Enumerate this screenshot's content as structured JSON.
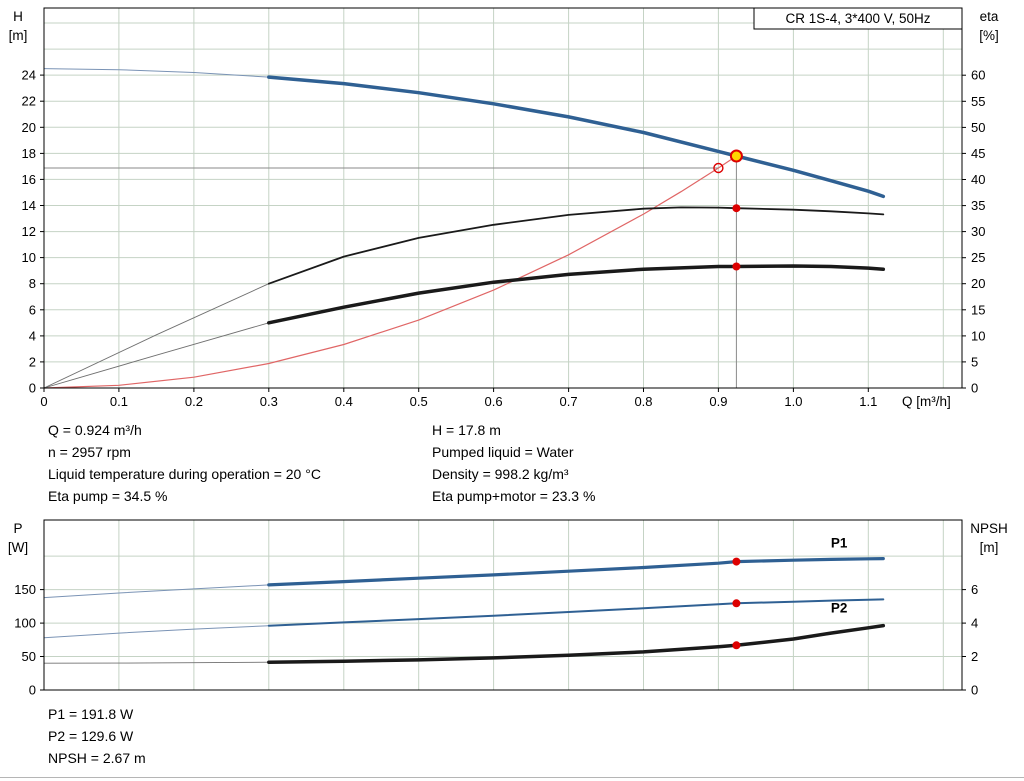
{
  "title_box": "CR 1S-4, 3*400 V, 50Hz",
  "colors": {
    "curve_blue": "#2f6093",
    "curve_blue_light": "#7a93b5",
    "curve_black": "#1a1a1a",
    "lead_gray": "#707070",
    "curve_red": "#e06666",
    "dot_red": "#dd0000",
    "duty_yellow": "#ffd500",
    "grid": "#c5d3c5",
    "axis": "#000000",
    "crosshair": "#8a8a8a",
    "label_blue": "#2f6093"
  },
  "info": {
    "mid_left": [
      "Q = 0.924 m³/h",
      "n = 2957 rpm",
      "Liquid temperature during operation = 20 °C",
      "Eta pump = 34.5 %"
    ],
    "mid_right": [
      "H = 17.8 m",
      "Pumped liquid = Water",
      "Density = 998.2 kg/m³",
      "Eta pump+motor = 23.3 %"
    ],
    "bottom": [
      "P1 = 191.8 W",
      "P2 = 129.6 W",
      "NPSH = 2.67 m"
    ]
  },
  "chart_data": [
    {
      "type": "line",
      "name": "qh-eta-chart",
      "title": "CR 1S-4, 3*400 V, 50Hz",
      "area": {
        "l": 44,
        "t": 8,
        "r": 962,
        "b": 388
      },
      "x": {
        "min": 0,
        "max": 1.225,
        "label": "Q [m³/h]",
        "ticks": [
          [
            0,
            "0"
          ],
          [
            0.1,
            "0.1"
          ],
          [
            0.2,
            "0.2"
          ],
          [
            0.3,
            "0.3"
          ],
          [
            0.4,
            "0.4"
          ],
          [
            0.5,
            "0.5"
          ],
          [
            0.6,
            "0.6"
          ],
          [
            0.7,
            "0.7"
          ],
          [
            0.8,
            "0.8"
          ],
          [
            0.9,
            "0.9"
          ],
          [
            1.0,
            "1.0"
          ],
          [
            1.1,
            "1.1"
          ]
        ],
        "grid": [
          0.1,
          0.2,
          0.3,
          0.4,
          0.5,
          0.6,
          0.7,
          0.8,
          0.9,
          1.0,
          1.1,
          1.2
        ]
      },
      "y_left": {
        "min": 0,
        "max": 29.15,
        "title": [
          "H",
          "[m]"
        ],
        "ticks": [
          [
            0,
            "0"
          ],
          [
            2,
            "2"
          ],
          [
            4,
            "4"
          ],
          [
            6,
            "6"
          ],
          [
            8,
            "8"
          ],
          [
            10,
            "10"
          ],
          [
            12,
            "12"
          ],
          [
            14,
            "14"
          ],
          [
            16,
            "16"
          ],
          [
            18,
            "18"
          ],
          [
            20,
            "20"
          ],
          [
            22,
            "22"
          ],
          [
            24,
            "24"
          ]
        ],
        "grid": [
          2,
          4,
          6,
          8,
          10,
          12,
          14,
          16,
          18,
          20,
          22,
          24,
          26,
          28
        ]
      },
      "y_right": {
        "min": 0,
        "max": 72.9,
        "title": [
          "eta",
          "[%]"
        ],
        "ticks": [
          [
            0,
            "0"
          ],
          [
            5,
            "5"
          ],
          [
            10,
            "10"
          ],
          [
            15,
            "15"
          ],
          [
            20,
            "20"
          ],
          [
            25,
            "25"
          ],
          [
            30,
            "30"
          ],
          [
            35,
            "35"
          ],
          [
            40,
            "40"
          ],
          [
            45,
            "45"
          ],
          [
            50,
            "50"
          ],
          [
            55,
            "55"
          ],
          [
            60,
            "60"
          ]
        ],
        "grid": []
      },
      "series": [
        {
          "name": "crosshair-horizontal",
          "axis": "left",
          "color": "#8a8a8a",
          "width": 1,
          "points": [
            [
              0,
              16.88
            ],
            [
              0.9,
              16.88
            ]
          ]
        },
        {
          "name": "crosshair-vertical",
          "axis": "left",
          "color": "#8a8a8a",
          "width": 1,
          "points": [
            [
              0.924,
              0
            ],
            [
              0.924,
              17.8
            ]
          ]
        },
        {
          "name": "duty-parabola",
          "axis": "left",
          "color": "#e06666",
          "width": 1.2,
          "points": [
            [
              0,
              0
            ],
            [
              0.1,
              0.21
            ],
            [
              0.2,
              0.83
            ],
            [
              0.3,
              1.88
            ],
            [
              0.4,
              3.34
            ],
            [
              0.5,
              5.21
            ],
            [
              0.6,
              7.51
            ],
            [
              0.7,
              10.22
            ],
            [
              0.8,
              13.34
            ],
            [
              0.85,
              15.06
            ],
            [
              0.9,
              16.88
            ],
            [
              0.924,
              17.8
            ]
          ]
        },
        {
          "name": "qh-curve-leadin",
          "axis": "left",
          "color": "#7a93b5",
          "width": 1,
          "points": [
            [
              0,
              24.5
            ],
            [
              0.1,
              24.42
            ],
            [
              0.2,
              24.2
            ],
            [
              0.3,
              23.85
            ]
          ]
        },
        {
          "name": "qh-curve",
          "axis": "left",
          "color": "#2f6093",
          "width": 3.5,
          "points": [
            [
              0.3,
              23.85
            ],
            [
              0.4,
              23.35
            ],
            [
              0.5,
              22.65
            ],
            [
              0.6,
              21.8
            ],
            [
              0.7,
              20.8
            ],
            [
              0.8,
              19.6
            ],
            [
              0.9,
              18.15
            ],
            [
              0.924,
              17.8
            ],
            [
              1.0,
              16.7
            ],
            [
              1.05,
              15.9
            ],
            [
              1.1,
              15.1
            ],
            [
              1.12,
              14.7
            ]
          ]
        },
        {
          "name": "eta-pump-leadin",
          "axis": "right",
          "color": "#707070",
          "width": 0.9,
          "points": [
            [
              0,
              0
            ],
            [
              0.15,
              10.2
            ],
            [
              0.3,
              20
            ]
          ]
        },
        {
          "name": "eta-pump-curve",
          "axis": "right",
          "color": "#1a1a1a",
          "width": 1.8,
          "points": [
            [
              0.3,
              20
            ],
            [
              0.4,
              25.2
            ],
            [
              0.5,
              28.8
            ],
            [
              0.6,
              31.3
            ],
            [
              0.7,
              33.2
            ],
            [
              0.8,
              34.4
            ],
            [
              0.85,
              34.65
            ],
            [
              0.9,
              34.6
            ],
            [
              0.924,
              34.5
            ],
            [
              1.0,
              34.2
            ],
            [
              1.05,
              33.9
            ],
            [
              1.1,
              33.5
            ],
            [
              1.12,
              33.3
            ]
          ]
        },
        {
          "name": "eta-pump-motor-leadin",
          "axis": "right",
          "color": "#707070",
          "width": 0.9,
          "points": [
            [
              0,
              0
            ],
            [
              0.15,
              6.3
            ],
            [
              0.3,
              12.5
            ]
          ]
        },
        {
          "name": "eta-pump-motor-curve",
          "axis": "right",
          "color": "#1a1a1a",
          "width": 3.5,
          "points": [
            [
              0.3,
              12.5
            ],
            [
              0.4,
              15.5
            ],
            [
              0.5,
              18.2
            ],
            [
              0.6,
              20.3
            ],
            [
              0.7,
              21.8
            ],
            [
              0.8,
              22.8
            ],
            [
              0.9,
              23.3
            ],
            [
              0.924,
              23.3
            ],
            [
              1.0,
              23.4
            ],
            [
              1.05,
              23.3
            ],
            [
              1.1,
              23.0
            ],
            [
              1.12,
              22.8
            ]
          ]
        }
      ],
      "markers": [
        {
          "name": "requested-point-marker",
          "type": "open",
          "axis": "left",
          "x": 0.9,
          "y": 16.88
        },
        {
          "name": "duty-point-marker",
          "type": "duty",
          "axis": "left",
          "x": 0.924,
          "y": 17.8
        },
        {
          "name": "eta-pump-dot",
          "type": "dot",
          "axis": "right",
          "x": 0.924,
          "y": 34.5
        },
        {
          "name": "eta-pump-motor-dot",
          "type": "dot",
          "axis": "right",
          "x": 0.924,
          "y": 23.3
        }
      ],
      "labels": []
    },
    {
      "type": "line",
      "name": "power-npsh-chart",
      "title": "",
      "area": {
        "l": 44,
        "t": 520,
        "r": 962,
        "b": 690
      },
      "x": {
        "min": 0,
        "max": 1.225,
        "label": "",
        "ticks": [],
        "grid": [
          0.1,
          0.2,
          0.3,
          0.4,
          0.5,
          0.6,
          0.7,
          0.8,
          0.9,
          1.0,
          1.1,
          1.2
        ]
      },
      "y_left": {
        "min": 0,
        "max": 254,
        "title": [
          "P",
          "[W]"
        ],
        "ticks": [
          [
            0,
            "0"
          ],
          [
            50,
            "50"
          ],
          [
            100,
            "100"
          ],
          [
            150,
            "150"
          ]
        ],
        "grid": [
          50,
          100,
          150,
          200
        ]
      },
      "y_right": {
        "min": 0,
        "max": 10.16,
        "title": [
          "NPSH",
          "[m]"
        ],
        "ticks": [
          [
            0,
            "0"
          ],
          [
            2,
            "2"
          ],
          [
            4,
            "4"
          ],
          [
            6,
            "6"
          ]
        ],
        "grid": []
      },
      "series": [
        {
          "name": "p1-leadin",
          "axis": "left",
          "color": "#7a93b5",
          "width": 1,
          "points": [
            [
              0,
              138
            ],
            [
              0.1,
              145
            ],
            [
              0.2,
              151
            ],
            [
              0.3,
              157
            ]
          ]
        },
        {
          "name": "p1-curve",
          "axis": "left",
          "color": "#2f6093",
          "width": 3.2,
          "points": [
            [
              0.3,
              157
            ],
            [
              0.4,
              162
            ],
            [
              0.5,
              167
            ],
            [
              0.6,
              172
            ],
            [
              0.7,
              177.5
            ],
            [
              0.8,
              183
            ],
            [
              0.9,
              189.5
            ],
            [
              0.924,
              191.8
            ],
            [
              1.0,
              194
            ],
            [
              1.05,
              195.2
            ],
            [
              1.1,
              196
            ],
            [
              1.12,
              196.3
            ]
          ]
        },
        {
          "name": "p2-leadin",
          "axis": "left",
          "color": "#7a93b5",
          "width": 1,
          "points": [
            [
              0,
              78
            ],
            [
              0.1,
              85
            ],
            [
              0.2,
              91
            ],
            [
              0.3,
              96
            ]
          ]
        },
        {
          "name": "p2-curve",
          "axis": "left",
          "color": "#2f6093",
          "width": 2,
          "points": [
            [
              0.3,
              96
            ],
            [
              0.4,
              101
            ],
            [
              0.5,
              106
            ],
            [
              0.6,
              111
            ],
            [
              0.7,
              116.5
            ],
            [
              0.8,
              122
            ],
            [
              0.9,
              128
            ],
            [
              0.924,
              129.6
            ],
            [
              1.0,
              132
            ],
            [
              1.05,
              133.5
            ],
            [
              1.1,
              134.8
            ],
            [
              1.12,
              135.3
            ]
          ]
        },
        {
          "name": "npsh-leadin",
          "axis": "right",
          "color": "#707070",
          "width": 0.9,
          "points": [
            [
              0,
              1.6
            ],
            [
              0.1,
              1.61
            ],
            [
              0.2,
              1.63
            ],
            [
              0.3,
              1.66
            ]
          ]
        },
        {
          "name": "npsh-curve",
          "axis": "right",
          "color": "#1a1a1a",
          "width": 3.5,
          "points": [
            [
              0.3,
              1.66
            ],
            [
              0.4,
              1.72
            ],
            [
              0.5,
              1.8
            ],
            [
              0.6,
              1.92
            ],
            [
              0.7,
              2.08
            ],
            [
              0.8,
              2.28
            ],
            [
              0.9,
              2.58
            ],
            [
              0.924,
              2.67
            ],
            [
              1.0,
              3.05
            ],
            [
              1.05,
              3.4
            ],
            [
              1.1,
              3.72
            ],
            [
              1.12,
              3.85
            ]
          ]
        }
      ],
      "markers": [
        {
          "name": "p1-dot",
          "type": "dot",
          "axis": "left",
          "x": 0.924,
          "y": 191.8
        },
        {
          "name": "p2-dot",
          "type": "dot",
          "axis": "left",
          "x": 0.924,
          "y": 129.6
        },
        {
          "name": "npsh-dot",
          "type": "dot",
          "axis": "right",
          "x": 0.924,
          "y": 2.67
        }
      ],
      "labels": [
        {
          "text": "P1",
          "x": 1.05,
          "y": 213,
          "axis": "left",
          "color": "#2f6093"
        },
        {
          "text": "P2",
          "x": 1.05,
          "y": 116,
          "axis": "left",
          "color": "#2f6093"
        }
      ]
    }
  ]
}
